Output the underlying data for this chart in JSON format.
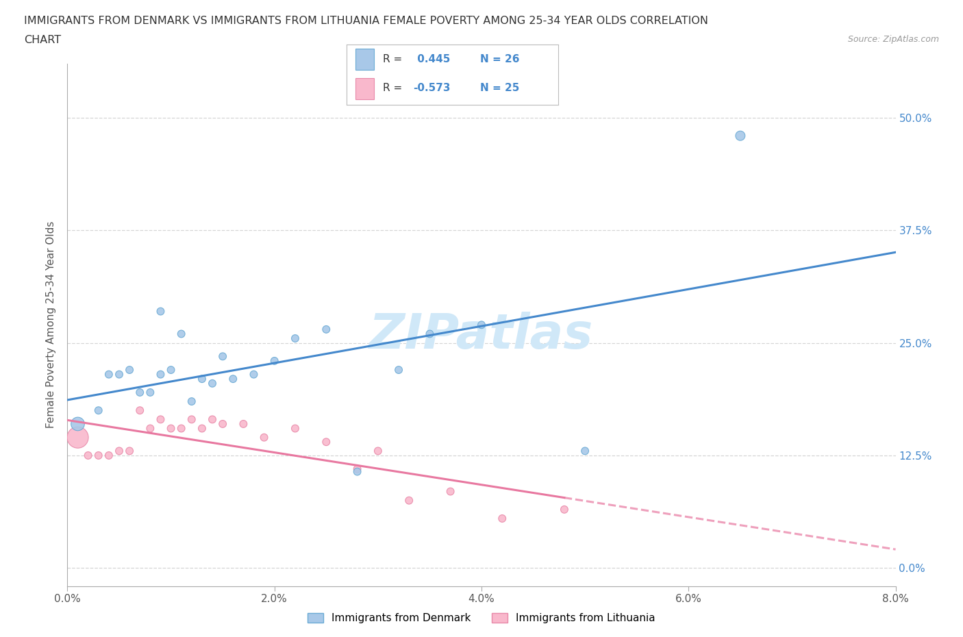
{
  "title_line1": "IMMIGRANTS FROM DENMARK VS IMMIGRANTS FROM LITHUANIA FEMALE POVERTY AMONG 25-34 YEAR OLDS CORRELATION",
  "title_line2": "CHART",
  "source": "Source: ZipAtlas.com",
  "ylabel": "Female Poverty Among 25-34 Year Olds",
  "xlim": [
    0.0,
    0.08
  ],
  "ylim": [
    -0.02,
    0.56
  ],
  "yticks": [
    0.0,
    0.125,
    0.25,
    0.375,
    0.5
  ],
  "yticklabels": [
    "0.0%",
    "12.5%",
    "25.0%",
    "37.5%",
    "50.0%"
  ],
  "xticks": [
    0.0,
    0.02,
    0.04,
    0.06,
    0.08
  ],
  "xticklabels": [
    "0.0%",
    "2.0%",
    "4.0%",
    "6.0%",
    "8.0%"
  ],
  "denmark_color": "#a8c8e8",
  "denmark_edge_color": "#6aaad4",
  "lithuania_color": "#f9b8cc",
  "lithuania_edge_color": "#e888a8",
  "trend_denmark_color": "#4488cc",
  "trend_lithuania_color": "#e878a0",
  "tick_color": "#4488cc",
  "R_denmark": 0.445,
  "N_denmark": 26,
  "R_lithuania": -0.573,
  "N_lithuania": 25,
  "denmark_x": [
    0.001,
    0.003,
    0.004,
    0.005,
    0.006,
    0.007,
    0.008,
    0.009,
    0.009,
    0.01,
    0.011,
    0.012,
    0.013,
    0.014,
    0.015,
    0.016,
    0.018,
    0.02,
    0.022,
    0.025,
    0.028,
    0.032,
    0.035,
    0.04,
    0.05,
    0.065
  ],
  "denmark_y": [
    0.16,
    0.175,
    0.215,
    0.215,
    0.22,
    0.195,
    0.195,
    0.285,
    0.215,
    0.22,
    0.26,
    0.185,
    0.21,
    0.205,
    0.235,
    0.21,
    0.215,
    0.23,
    0.255,
    0.265,
    0.107,
    0.22,
    0.26,
    0.27,
    0.13,
    0.48
  ],
  "denmark_sizes": [
    200,
    60,
    60,
    60,
    60,
    60,
    60,
    60,
    60,
    60,
    60,
    60,
    60,
    60,
    60,
    60,
    60,
    60,
    60,
    60,
    60,
    60,
    60,
    60,
    60,
    100
  ],
  "lithuania_x": [
    0.001,
    0.002,
    0.003,
    0.004,
    0.005,
    0.006,
    0.007,
    0.008,
    0.009,
    0.01,
    0.011,
    0.012,
    0.013,
    0.014,
    0.015,
    0.017,
    0.019,
    0.022,
    0.025,
    0.028,
    0.03,
    0.033,
    0.037,
    0.042,
    0.048
  ],
  "lithuania_y": [
    0.145,
    0.125,
    0.125,
    0.125,
    0.13,
    0.13,
    0.175,
    0.155,
    0.165,
    0.155,
    0.155,
    0.165,
    0.155,
    0.165,
    0.16,
    0.16,
    0.145,
    0.155,
    0.14,
    0.11,
    0.13,
    0.075,
    0.085,
    0.055,
    0.065
  ],
  "lithuania_sizes": [
    500,
    60,
    60,
    60,
    60,
    60,
    60,
    60,
    60,
    60,
    60,
    60,
    60,
    60,
    60,
    60,
    60,
    60,
    60,
    60,
    60,
    60,
    60,
    60,
    60
  ],
  "background_color": "#ffffff",
  "grid_color": "#cccccc",
  "watermark_text": "ZIPatlas",
  "watermark_color": "#d0e8f8"
}
